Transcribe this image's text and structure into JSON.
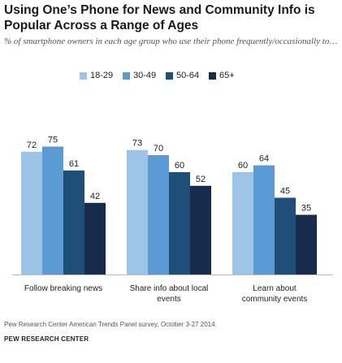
{
  "title": "Using One’s Phone for News and Community Info is Popular Across a Range of Ages",
  "subtitle": "% of smartphone owners in each age group who use their phone frequently/occasionally to…",
  "source": "Pew Research Center American Trends Panel survey, October 3-27 2014.",
  "organization": "PEW RESEARCH CENTER",
  "chart_data": {
    "type": "bar",
    "categories": [
      "Follow breaking news",
      "Share info about local events",
      "Learn about community events"
    ],
    "series": [
      {
        "name": "18-29",
        "color": "#9dc3e6",
        "values": [
          72,
          73,
          60
        ]
      },
      {
        "name": "30-49",
        "color": "#5b9bd5",
        "values": [
          75,
          70,
          64
        ]
      },
      {
        "name": "50-64",
        "color": "#1f4e79",
        "values": [
          61,
          60,
          45
        ]
      },
      {
        "name": "65+",
        "color": "#172b4d",
        "values": [
          42,
          52,
          35
        ]
      }
    ],
    "ylim": [
      0,
      80
    ],
    "grid": false,
    "legend_position": "top"
  }
}
